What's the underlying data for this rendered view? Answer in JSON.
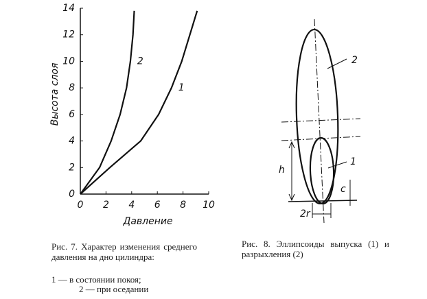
{
  "chart_data": {
    "type": "line",
    "x_label": "Давление",
    "y_label": "Высота слоя",
    "xlim": [
      0,
      10
    ],
    "xticks": [
      0,
      2,
      4,
      6,
      8,
      10
    ],
    "ylim": [
      0,
      14
    ],
    "yticks": [
      0,
      2,
      4,
      6,
      8,
      10,
      12,
      14
    ],
    "series": [
      {
        "name": "1",
        "color": "#111111",
        "x": [
          0,
          2.3,
          4.7,
          6.1,
          7.1,
          7.9,
          9.1
        ],
        "values": [
          0,
          2,
          4,
          6,
          8,
          10,
          13.8
        ]
      },
      {
        "name": "2",
        "color": "#111111",
        "x": [
          0,
          1.5,
          2.4,
          3.1,
          3.6,
          3.9,
          4.1,
          4.2
        ],
        "values": [
          0,
          2,
          4,
          6,
          8,
          10,
          12,
          13.8
        ]
      }
    ]
  },
  "figure7_caption": {
    "title": "Рис. 7. Характер изменения среднего давления на дно цилиндра:",
    "items": [
      "1 — в состоянии покоя;",
      "2 — при оседании"
    ]
  },
  "figure8": {
    "labels": {
      "ellipse_1": "1",
      "ellipse_2": "2",
      "height": "h",
      "offset": "c",
      "width": "2r"
    },
    "caption": "Рис. 8. Эллипсоиды выпуска (1) и разрыхления (2)"
  }
}
